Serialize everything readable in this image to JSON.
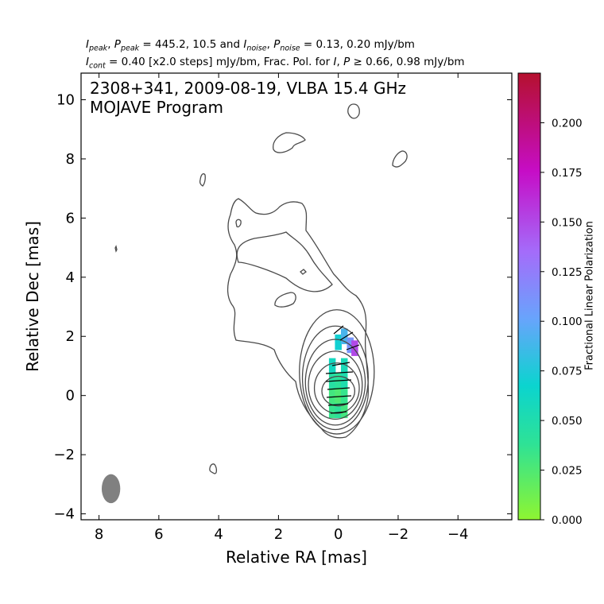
{
  "header": {
    "line1": {
      "i_sym": "I",
      "peak_sub": "peak",
      "p_sym": "P",
      "eq": " = ",
      "peak_values": "445.2, 10.5 and ",
      "noise_sub": "noise",
      "noise_values": "0.13, 0.20 mJy/bm"
    },
    "line2": {
      "i_sym": "I",
      "cont_sub": "cont",
      "text": " = 0.40 [x2.0 steps] mJy/bm, Frac. Pol. for ",
      "p_sym": "P",
      "ge": " ≥ ",
      "tail": "0.66, 0.98 mJy/bm"
    }
  },
  "chart_data": {
    "type": "contour",
    "title_line1": "2308+341, 2009-08-19, VLBA 15.4 GHz",
    "title_line2": "MOJAVE Program",
    "xlabel": "Relative RA [mas]",
    "ylabel": "Relative Dec [mas]",
    "xlim": [
      8.6,
      -5.8
    ],
    "ylim": [
      -4.2,
      10.9
    ],
    "xticks": [
      8,
      6,
      4,
      2,
      0,
      -2,
      -4
    ],
    "xtick_labels": [
      "8",
      "6",
      "4",
      "2",
      "0",
      "−2",
      "−4"
    ],
    "yticks": [
      -4,
      -2,
      0,
      2,
      4,
      6,
      8,
      10
    ],
    "ytick_labels": [
      "−4",
      "−2",
      "0",
      "2",
      "4",
      "6",
      "8",
      "10"
    ],
    "colorbar": {
      "label": "Fractional Linear Polarization",
      "range": [
        0.0,
        0.225
      ],
      "ticks": [
        0.0,
        0.025,
        0.05,
        0.075,
        0.1,
        0.125,
        0.15,
        0.175,
        0.2
      ],
      "tick_labels": [
        "0.000",
        "0.025",
        "0.050",
        "0.075",
        "0.100",
        "0.125",
        "0.150",
        "0.175",
        "0.200"
      ],
      "colors": [
        "#8ef531",
        "#2ee296",
        "#0bd4cf",
        "#68a4fc",
        "#a46cfa",
        "#c60dc6",
        "#b5102e"
      ]
    },
    "beam": {
      "x": 7.6,
      "y": -3.15,
      "major": 0.98,
      "minor": 0.62
    },
    "contour_color": "#4a4a4a",
    "core_contours": [
      {
        "x": 0.0,
        "y": 0.15,
        "rx": 0.55,
        "ry": 0.5
      },
      {
        "x": 0.05,
        "y": 0.25,
        "rx": 0.75,
        "ry": 0.85
      },
      {
        "x": 0.1,
        "y": 0.35,
        "rx": 0.9,
        "ry": 1.15
      },
      {
        "x": 0.1,
        "y": 0.45,
        "rx": 1.0,
        "ry": 1.45
      },
      {
        "x": 0.1,
        "y": 0.6,
        "rx": 1.1,
        "ry": 1.75
      },
      {
        "x": 0.05,
        "y": 0.8,
        "rx": 1.25,
        "ry": 2.1
      }
    ],
    "polarization_fraction_pixels": [
      {
        "x": 0.2,
        "y": -0.5,
        "p": 0.035
      },
      {
        "x": 0.0,
        "y": -0.5,
        "p": 0.04
      },
      {
        "x": -0.2,
        "y": -0.5,
        "p": 0.03
      },
      {
        "x": 0.2,
        "y": 0.0,
        "p": 0.03
      },
      {
        "x": 0.0,
        "y": 0.0,
        "p": 0.025
      },
      {
        "x": -0.2,
        "y": 0.0,
        "p": 0.035
      },
      {
        "x": 0.2,
        "y": 0.5,
        "p": 0.045
      },
      {
        "x": 0.0,
        "y": 0.5,
        "p": 0.04
      },
      {
        "x": -0.2,
        "y": 0.5,
        "p": 0.05
      },
      {
        "x": 0.2,
        "y": 1.0,
        "p": 0.06
      },
      {
        "x": -0.2,
        "y": 1.0,
        "p": 0.055
      },
      {
        "x": 0.0,
        "y": 1.8,
        "p": 0.07
      },
      {
        "x": -0.2,
        "y": 2.0,
        "p": 0.09
      },
      {
        "x": -0.4,
        "y": 1.7,
        "p": 0.11
      },
      {
        "x": -0.55,
        "y": 1.6,
        "p": 0.15
      }
    ]
  }
}
